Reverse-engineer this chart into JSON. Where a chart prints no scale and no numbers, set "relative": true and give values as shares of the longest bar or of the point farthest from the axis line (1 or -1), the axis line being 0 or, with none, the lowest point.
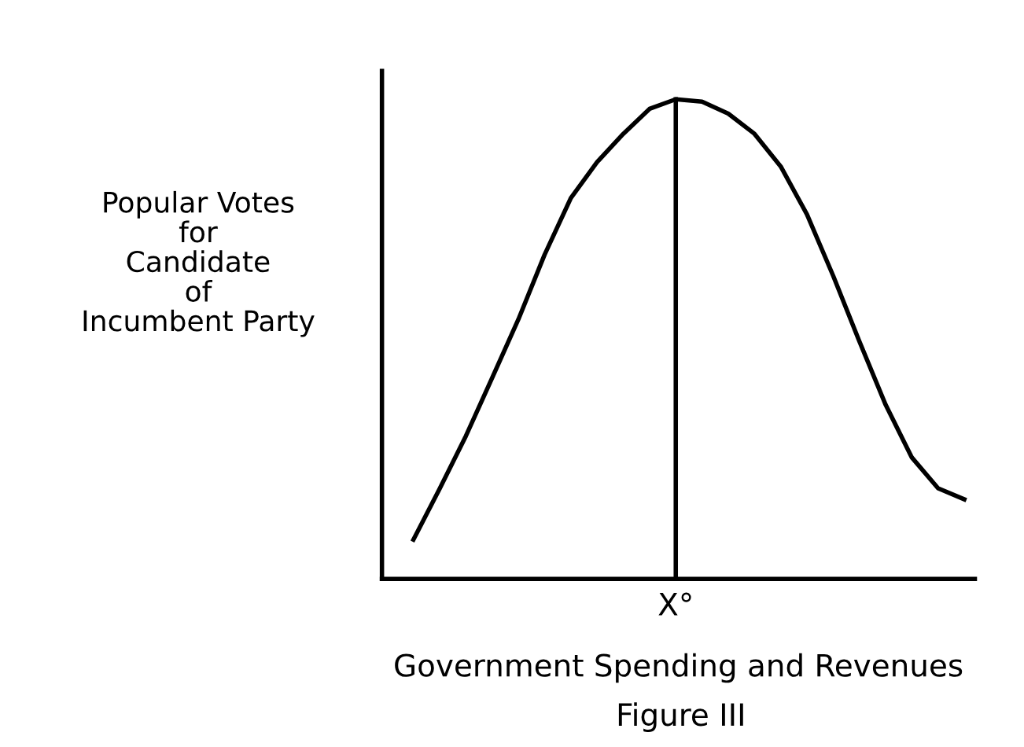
{
  "chart_data": {
    "type": "line",
    "relative": true,
    "xlabel": "Government Spending and Revenues",
    "ylabel": "Popular Votes\nfor\nCandidate\nof\nIncumbent Party",
    "annotations": [
      "Figure III"
    ],
    "categories": [
      null,
      null,
      null,
      null,
      null,
      null,
      null,
      null,
      null,
      null,
      null,
      null,
      null,
      null,
      null,
      null,
      null,
      null,
      null,
      null,
      null,
      null
    ],
    "ref_lines": [
      {
        "axis": "x",
        "value": "X°",
        "color": "#000000",
        "line_style": "solid"
      }
    ],
    "series": [
      {
        "color": "#000000",
        "line_style": "solid",
        "marker": "none",
        "values": [
          0.082,
          0.188,
          0.298,
          0.419,
          0.541,
          0.676,
          0.794,
          0.869,
          0.928,
          0.98,
          1,
          0.995,
          0.97,
          0.928,
          0.86,
          0.76,
          0.632,
          0.495,
          0.363,
          0.253,
          0.189,
          0.166
        ]
      }
    ]
  }
}
